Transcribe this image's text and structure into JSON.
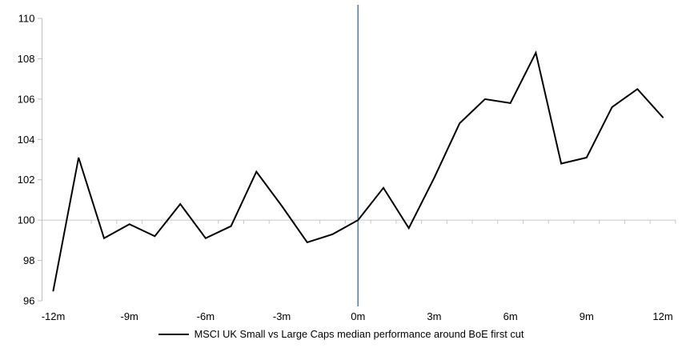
{
  "legend": {
    "label": "MSCI UK Small vs Large Caps median performance around BoE first cut"
  },
  "chart_data": {
    "type": "line",
    "title": "",
    "xlabel": "",
    "ylabel": "",
    "x": [
      -12,
      -11,
      -10,
      -9,
      -8,
      -7,
      -6,
      -5,
      -4,
      -3,
      -2,
      -1,
      0,
      1,
      2,
      3,
      4,
      5,
      6,
      7,
      8,
      9,
      10,
      11,
      12
    ],
    "series": [
      {
        "name": "MSCI UK Small vs Large Caps median performance around BoE first cut",
        "color": "#000000",
        "values": [
          96.5,
          103.1,
          99.1,
          99.8,
          99.2,
          100.8,
          99.1,
          99.7,
          102.4,
          100.7,
          98.9,
          99.3,
          100.0,
          101.6,
          99.6,
          102.1,
          104.8,
          106.0,
          105.8,
          108.3,
          102.8,
          103.1,
          105.6,
          106.5,
          105.1
        ]
      }
    ],
    "x_ticks": [
      {
        "value": -12,
        "label": "-12m"
      },
      {
        "value": -9,
        "label": "-9m"
      },
      {
        "value": -6,
        "label": "-6m"
      },
      {
        "value": -3,
        "label": "-3m"
      },
      {
        "value": 0,
        "label": "0m"
      },
      {
        "value": 3,
        "label": "3m"
      },
      {
        "value": 6,
        "label": "6m"
      },
      {
        "value": 9,
        "label": "9m"
      },
      {
        "value": 12,
        "label": "12m"
      }
    ],
    "y_ticks": [
      96,
      98,
      100,
      102,
      104,
      106,
      108,
      110
    ],
    "xlim": [
      -12,
      12
    ],
    "ylim": [
      96,
      110
    ],
    "baseline_y": 100,
    "event_line_x": 0,
    "grid": false,
    "legend_position": "bottom",
    "colors": {
      "series": "#000000",
      "event_line": "#4E81BD",
      "baseline": "#C6C6C6",
      "axis": "#BFBFBF",
      "text": "#000000"
    }
  }
}
